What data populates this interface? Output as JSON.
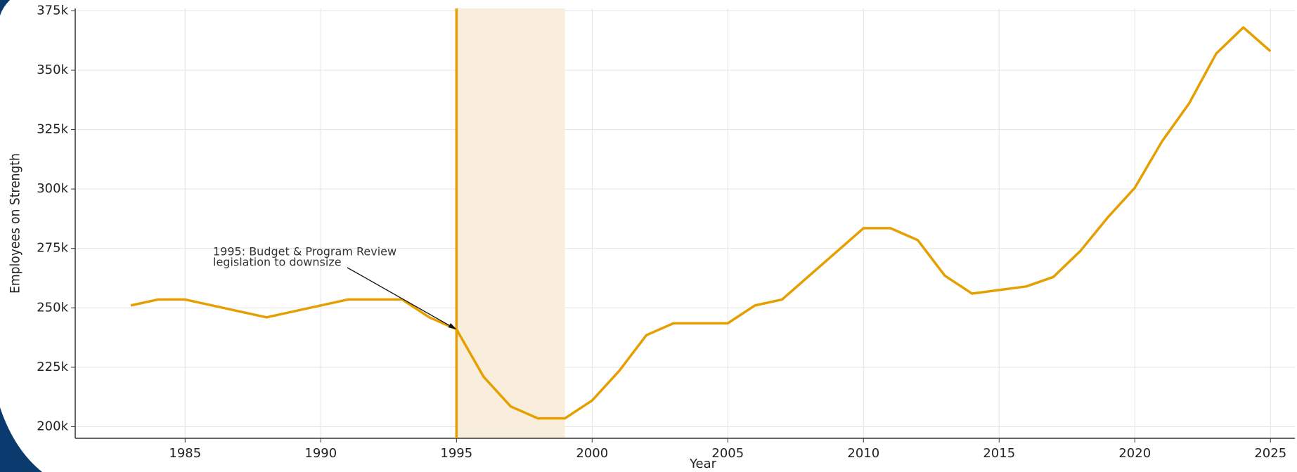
{
  "chart_data": {
    "type": "line",
    "x_label": "Year",
    "y_label": "Employees on Strength",
    "x": [
      1983,
      1984,
      1985,
      1988,
      1991,
      1993,
      1994,
      1995,
      1996,
      1997,
      1998,
      1999,
      2000,
      2001,
      2002,
      2003,
      2004,
      2005,
      2006,
      2007,
      2008,
      2009,
      2010,
      2011,
      2012,
      2013,
      2014,
      2015,
      2016,
      2017,
      2018,
      2019,
      2020,
      2021,
      2022,
      2023,
      2024,
      2025
    ],
    "series": [
      {
        "color": "#e69f00",
        "values": [
          251000,
          253500,
          253500,
          246000,
          253500,
          253500,
          246000,
          241000,
          221000,
          208500,
          203500,
          203500,
          211000,
          223500,
          238500,
          243500,
          243500,
          243500,
          251000,
          253500,
          263500,
          273500,
          283500,
          283500,
          278500,
          263500,
          256000,
          257500,
          259000,
          263000,
          274000,
          288000,
          300500,
          320000,
          336000,
          357000,
          368000,
          358000
        ]
      }
    ],
    "xlim": [
      1980.95,
      2025.9
    ],
    "ylim": [
      195100,
      376000
    ],
    "xticks": [
      1985,
      1990,
      1995,
      2000,
      2005,
      2010,
      2015,
      2020,
      2025
    ],
    "yticks": [
      {
        "value": 200000,
        "label": "200k"
      },
      {
        "value": 225000,
        "label": "225k"
      },
      {
        "value": 250000,
        "label": "250k"
      },
      {
        "value": 275000,
        "label": "275k"
      },
      {
        "value": 300000,
        "label": "300k"
      },
      {
        "value": 325000,
        "label": "325k"
      },
      {
        "value": 350000,
        "label": "350k"
      },
      {
        "value": 375000,
        "label": "375k"
      }
    ],
    "grid": true,
    "vline": {
      "x": 1995,
      "color": "#e69f00"
    },
    "span": {
      "x": [
        1995,
        1999
      ],
      "color": "#f9eedb"
    },
    "annotation": {
      "text": [
        "1995: Budget & Program Review",
        "legislation to downsize"
      ],
      "x": 1995,
      "y": 241000
    }
  }
}
